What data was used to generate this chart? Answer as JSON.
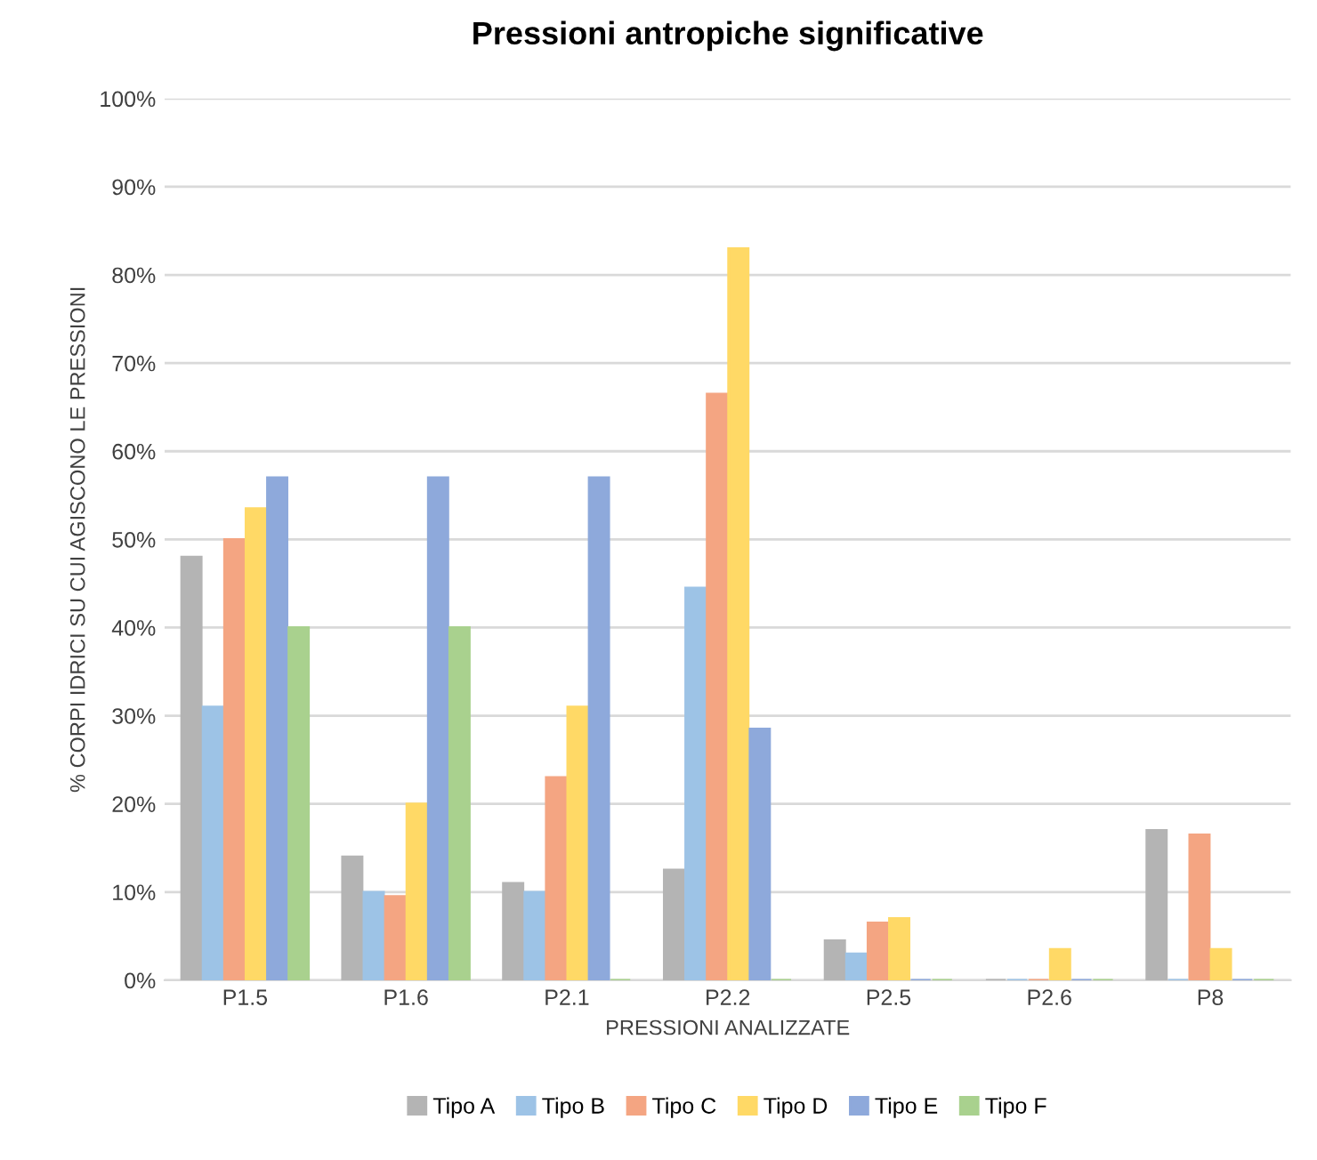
{
  "chart_data": {
    "type": "bar",
    "title": "Pressioni antropiche significative",
    "xlabel": "PRESSIONI ANALIZZATE",
    "ylabel": "% CORPI IDRICI SU CUI AGISCONO LE PRESSIONI",
    "categories": [
      "P1.5",
      "P1.6",
      "P2.1",
      "P2.2",
      "P2.5",
      "P2.6",
      "P8"
    ],
    "series": [
      {
        "name": "Tipo A",
        "color": "#b4b4b4",
        "values": [
          48,
          14,
          11,
          12.5,
          4.5,
          0,
          17
        ]
      },
      {
        "name": "Tipo B",
        "color": "#9dc3e6",
        "values": [
          31,
          10,
          10,
          44.5,
          3,
          0,
          0
        ]
      },
      {
        "name": "Tipo C",
        "color": "#f4a582",
        "values": [
          50,
          9.5,
          23,
          66.5,
          6.5,
          0,
          16.5
        ]
      },
      {
        "name": "Tipo D",
        "color": "#ffd966",
        "values": [
          53.5,
          20,
          31,
          83,
          7,
          3.5,
          3.5
        ]
      },
      {
        "name": "Tipo E",
        "color": "#8ea9db",
        "values": [
          57,
          57,
          57,
          28.5,
          0,
          0,
          0
        ]
      },
      {
        "name": "Tipo F",
        "color": "#a9d18e",
        "values": [
          40,
          40,
          0,
          0,
          0,
          0,
          0
        ]
      }
    ],
    "ylim": [
      0,
      100
    ],
    "yticks": [
      {
        "value": 0,
        "label": "0%"
      },
      {
        "value": 10,
        "label": "10%"
      },
      {
        "value": 20,
        "label": "20%"
      },
      {
        "value": 30,
        "label": "30%"
      },
      {
        "value": 40,
        "label": "40%"
      },
      {
        "value": 50,
        "label": "50%"
      },
      {
        "value": 60,
        "label": "60%"
      },
      {
        "value": 70,
        "label": "70%"
      },
      {
        "value": 80,
        "label": "80%"
      },
      {
        "value": 90,
        "label": "90%"
      },
      {
        "value": 100,
        "label": "100%"
      }
    ],
    "grid": "y",
    "legend": "bottom"
  }
}
